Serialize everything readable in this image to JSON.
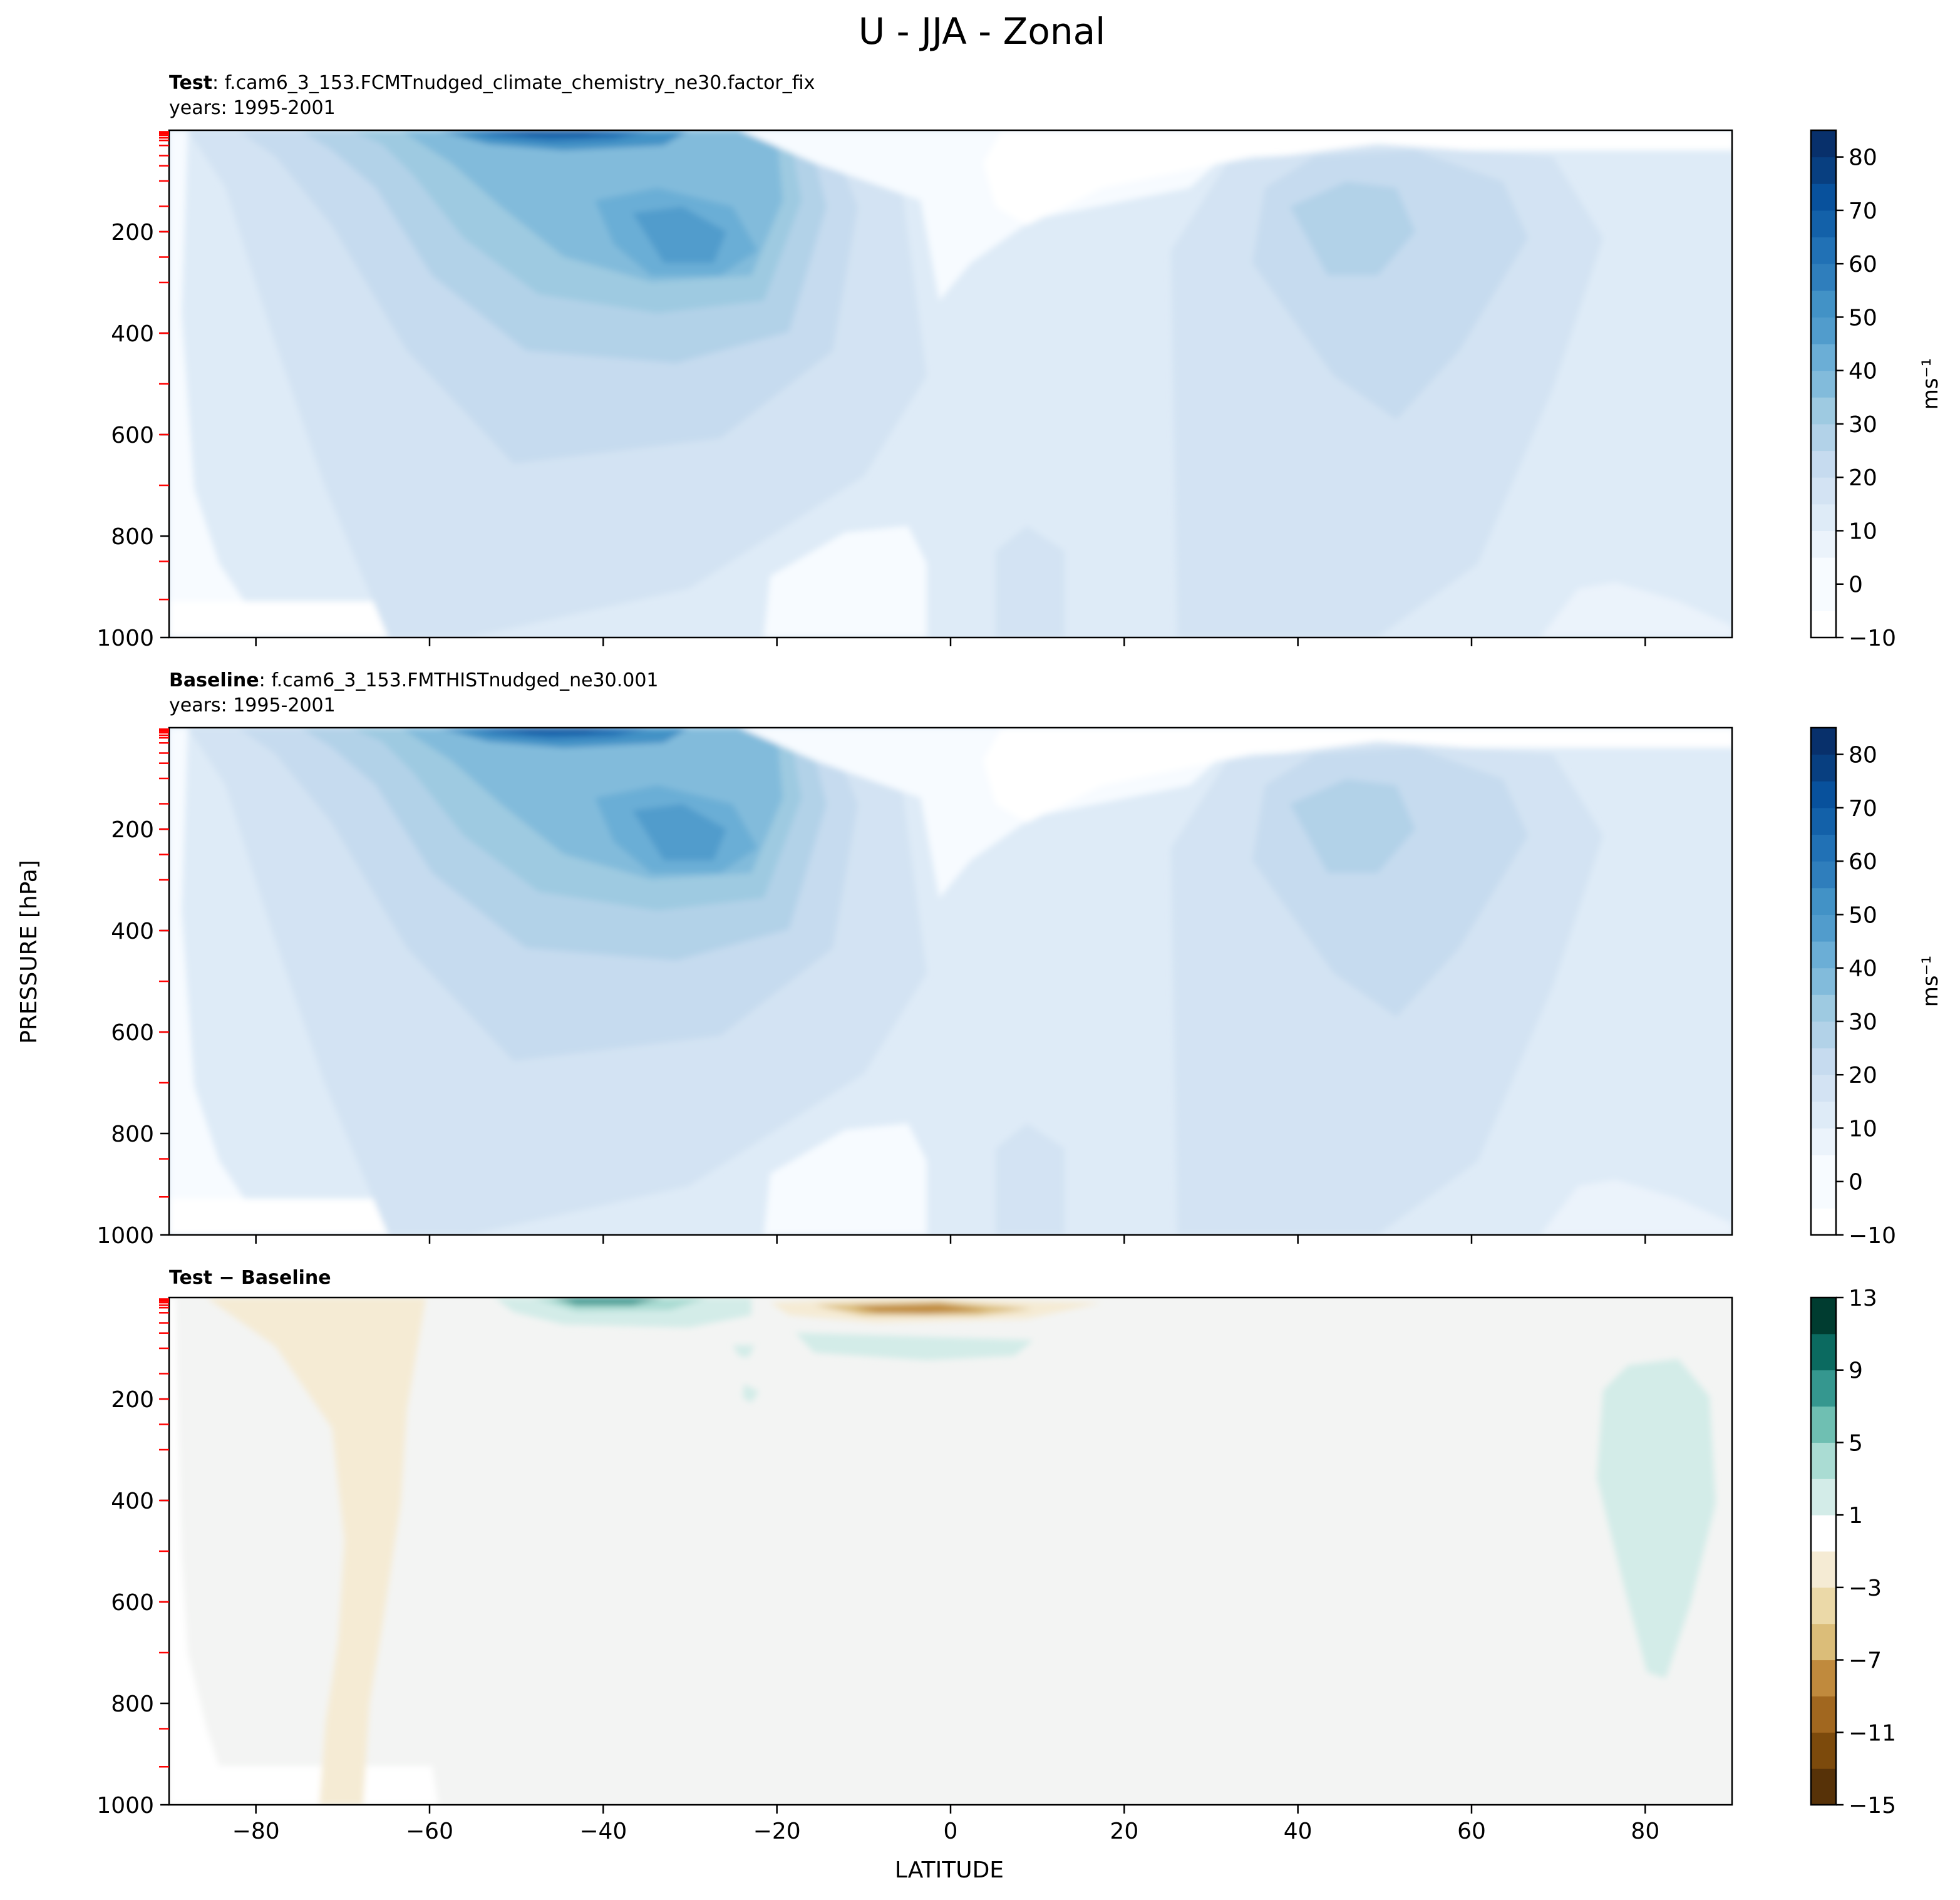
{
  "figure": {
    "title": "U - JJA - Zonal",
    "ylabel": "PRESSURE [hPa]",
    "xlabel": "LATITUDE"
  },
  "colors": {
    "blues": [
      "#f7fbff",
      "#ebf3fb",
      "#deebf7",
      "#d3e3f3",
      "#c6dbef",
      "#b2d2e8",
      "#9ecae1",
      "#82bbdb",
      "#6baed6",
      "#519ccc",
      "#4292c6",
      "#2f7ebc",
      "#2171b5",
      "#1361a9",
      "#08519c",
      "#083f80",
      "#08306b"
    ],
    "brbg_neg": [
      "#573208",
      "#7c4a0c",
      "#a1671f",
      "#c08a3d",
      "#dbbd79",
      "#ebd9a8",
      "#f5ebd4"
    ],
    "brbg_neutral": "#f3f4f3",
    "brbg_pos": [
      "#d3ece8",
      "#aadcd3",
      "#6fbfb2",
      "#35978f",
      "#0b6a60",
      "#003c30"
    ],
    "ref_tick": "#ff0000"
  },
  "panels": [
    {
      "id": "test",
      "title_bold": "Test",
      "title_rest": ": f.cam6_3_153.FCMTnudged_climate_chemistry_ne30.factor_fix",
      "subtitle": "years: 1995-2001",
      "colorbar": {
        "label": "ms⁻¹",
        "ticks": [
          "−10",
          "0",
          "10",
          "20",
          "30",
          "40",
          "50",
          "60",
          "70",
          "80"
        ]
      }
    },
    {
      "id": "baseline",
      "title_bold": "Baseline",
      "title_rest": ": f.cam6_3_153.FMTHISTnudged_ne30.001",
      "subtitle": "years: 1995-2001",
      "colorbar": {
        "label": "ms⁻¹",
        "ticks": [
          "−10",
          "0",
          "10",
          "20",
          "30",
          "40",
          "50",
          "60",
          "70",
          "80"
        ]
      }
    },
    {
      "id": "diff",
      "title_bold": "Test − Baseline",
      "title_rest": "",
      "subtitle": "",
      "colorbar": {
        "label": "",
        "ticks": [
          "−15",
          "−11",
          "−7",
          "−3",
          "1",
          "5",
          "9",
          "13"
        ]
      }
    }
  ],
  "chart_data": [
    {
      "type": "heatmap",
      "title": "Test: f.cam6_3_153.FCMTnudged_climate_chemistry_ne30.factor_fix",
      "subtitle": "years: 1995-2001",
      "xlabel": "LATITUDE",
      "ylabel": "PRESSURE [hPa]",
      "xlim": [
        -90,
        90
      ],
      "ylim": [
        1000,
        0
      ],
      "x_ticks": [
        -80,
        -60,
        -40,
        -20,
        0,
        20,
        40,
        60,
        80
      ],
      "y_ticks": [
        200,
        400,
        600,
        800,
        1000
      ],
      "colorbar_label": "ms^-1",
      "colorbar_range": [
        -10,
        85
      ],
      "features": [
        {
          "name": "SH stratospheric jet",
          "lat": -55,
          "p": 20,
          "u": 85
        },
        {
          "name": "SH subtropical jet",
          "lat": -32,
          "p": 200,
          "u": 45
        },
        {
          "name": "NH jet",
          "lat": 45,
          "p": 200,
          "u": 30
        },
        {
          "name": "tropical easterlies",
          "lat": 5,
          "p": 100,
          "u": -5
        }
      ]
    },
    {
      "type": "heatmap",
      "title": "Baseline: f.cam6_3_153.FMTHISTnudged_ne30.001",
      "subtitle": "years: 1995-2001",
      "xlabel": "LATITUDE",
      "ylabel": "PRESSURE [hPa]",
      "xlim": [
        -90,
        90
      ],
      "ylim": [
        1000,
        0
      ],
      "x_ticks": [
        -80,
        -60,
        -40,
        -20,
        0,
        20,
        40,
        60,
        80
      ],
      "y_ticks": [
        200,
        400,
        600,
        800,
        1000
      ],
      "colorbar_label": "ms^-1",
      "colorbar_range": [
        -10,
        85
      ],
      "features": [
        {
          "name": "SH stratospheric jet",
          "lat": -55,
          "p": 20,
          "u": 85
        },
        {
          "name": "SH subtropical jet",
          "lat": -32,
          "p": 200,
          "u": 45
        },
        {
          "name": "NH jet",
          "lat": 45,
          "p": 200,
          "u": 30
        },
        {
          "name": "tropical easterlies",
          "lat": 5,
          "p": 100,
          "u": -5
        }
      ]
    },
    {
      "type": "heatmap",
      "title": "Test − Baseline",
      "xlabel": "LATITUDE",
      "ylabel": "PRESSURE [hPa]",
      "xlim": [
        -90,
        90
      ],
      "ylim": [
        1000,
        0
      ],
      "x_ticks": [
        -80,
        -60,
        -40,
        -20,
        0,
        20,
        40,
        60,
        80
      ],
      "y_ticks": [
        200,
        400,
        600,
        800,
        1000
      ],
      "colorbar_levels": [
        -15,
        -13,
        -11,
        -9,
        -7,
        -5,
        -3,
        -1,
        1,
        3,
        5,
        7,
        9,
        11,
        13
      ],
      "features": [
        {
          "name": "upper positive anomaly",
          "lat": -33,
          "p": 10,
          "u": 9
        },
        {
          "name": "upper negative anomaly",
          "lat": -3,
          "p": 20,
          "u": -11
        },
        {
          "name": "SH high-latitude negative band",
          "lat": -65,
          "p": 400,
          "u": -2
        },
        {
          "name": "NH polar positive anomaly",
          "lat": 80,
          "p": 350,
          "u": 2
        }
      ]
    }
  ]
}
